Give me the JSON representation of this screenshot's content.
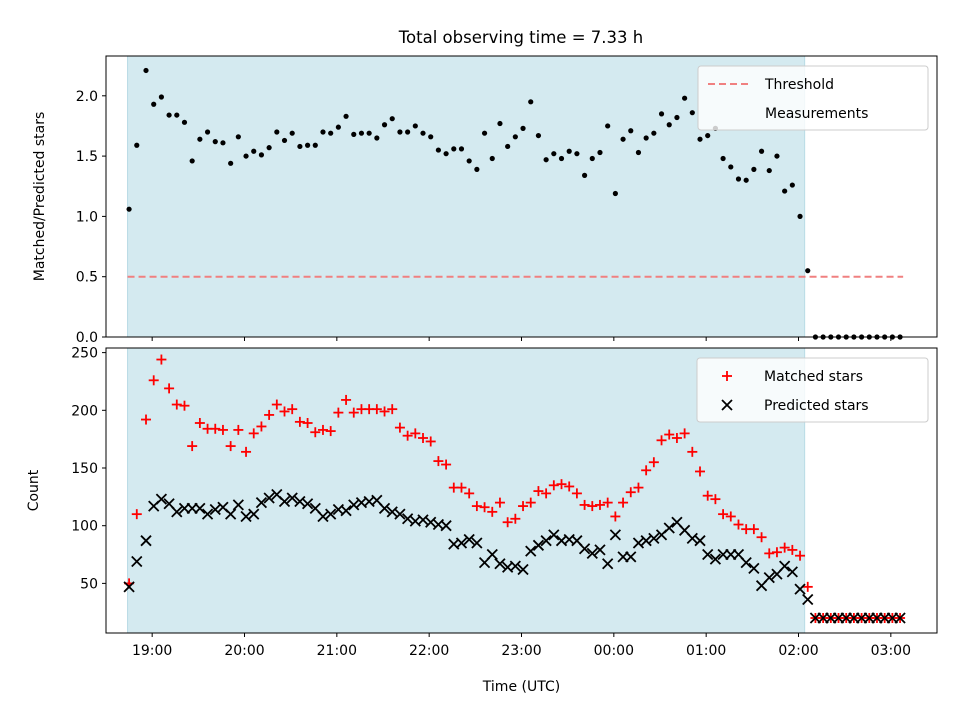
{
  "title": "Total observing time = 7.33 h",
  "colors": {
    "shade": "#d4eaf0",
    "threshold": "#f08080",
    "measurement": "#000000",
    "matched": "#ff0000",
    "predicted": "#000000"
  },
  "chart_data": [
    {
      "type": "scatter",
      "panel": "top",
      "xlabel": "",
      "ylabel": "Matched/Predicted stars",
      "xlim": [
        18.5,
        3.5
      ],
      "ylim": [
        0.0,
        2.33
      ],
      "yticks": [
        "0.0",
        "0.5",
        "1.0",
        "1.5",
        "2.0"
      ],
      "grid": false,
      "legend_position": "upper-right",
      "shaded_interval": [
        "18:44",
        "02:04"
      ],
      "threshold": {
        "name": "Threshold",
        "value": 0.5,
        "x_range": [
          "18:44",
          "03:08"
        ],
        "style": "dashed"
      },
      "series": [
        {
          "name": "Measurements",
          "marker": "dot",
          "x": [
            "18:45",
            "18:50",
            "18:56",
            "19:01",
            "19:06",
            "19:11",
            "19:16",
            "19:21",
            "19:26",
            "19:31",
            "19:36",
            "19:41",
            "19:46",
            "19:51",
            "19:56",
            "20:01",
            "20:06",
            "20:11",
            "20:16",
            "20:21",
            "20:26",
            "20:31",
            "20:36",
            "20:41",
            "20:46",
            "20:51",
            "20:56",
            "21:01",
            "21:06",
            "21:11",
            "21:16",
            "21:21",
            "21:26",
            "21:31",
            "21:36",
            "21:41",
            "21:46",
            "21:51",
            "21:56",
            "22:01",
            "22:06",
            "22:11",
            "22:16",
            "22:21",
            "22:26",
            "22:31",
            "22:36",
            "22:41",
            "22:46",
            "22:51",
            "22:56",
            "23:01",
            "23:06",
            "23:11",
            "23:16",
            "23:21",
            "23:26",
            "23:31",
            "23:36",
            "23:41",
            "23:46",
            "23:51",
            "23:56",
            "00:01",
            "00:06",
            "00:11",
            "00:16",
            "00:21",
            "00:26",
            "00:31",
            "00:36",
            "00:41",
            "00:46",
            "00:51",
            "00:56",
            "01:01",
            "01:06",
            "01:11",
            "01:16",
            "01:21",
            "01:26",
            "01:31",
            "01:36",
            "01:41",
            "01:46",
            "01:51",
            "01:56",
            "02:01",
            "02:06",
            "02:11",
            "02:16",
            "02:21",
            "02:26",
            "02:31",
            "02:36",
            "02:41",
            "02:46",
            "02:51",
            "02:56",
            "03:01",
            "03:06"
          ],
          "y": [
            1.06,
            1.59,
            2.21,
            1.93,
            1.99,
            1.84,
            1.84,
            1.78,
            1.46,
            1.64,
            1.7,
            1.62,
            1.61,
            1.44,
            1.66,
            1.5,
            1.54,
            1.51,
            1.57,
            1.7,
            1.63,
            1.69,
            1.58,
            1.59,
            1.59,
            1.7,
            1.69,
            1.74,
            1.83,
            1.68,
            1.69,
            1.69,
            1.65,
            1.76,
            1.81,
            1.7,
            1.7,
            1.75,
            1.69,
            1.66,
            1.55,
            1.52,
            1.56,
            1.56,
            1.46,
            1.39,
            1.69,
            1.48,
            1.77,
            1.58,
            1.66,
            1.73,
            1.95,
            1.67,
            1.47,
            1.52,
            1.48,
            1.54,
            1.52,
            1.34,
            1.48,
            1.53,
            1.75,
            1.19,
            1.64,
            1.71,
            1.53,
            1.65,
            1.69,
            1.85,
            1.76,
            1.82,
            1.98,
            1.86,
            1.64,
            1.67,
            1.73,
            1.48,
            1.41,
            1.31,
            1.3,
            1.39,
            1.54,
            1.38,
            1.5,
            1.21,
            1.26,
            1.0,
            0.55,
            0.0,
            0.0,
            0.0,
            0.0,
            0.0,
            0.0,
            0.0,
            0.0,
            0.0,
            0.0,
            0.0,
            0.0
          ]
        }
      ]
    },
    {
      "type": "scatter",
      "panel": "bottom",
      "xlabel": "Time (UTC)",
      "ylabel": "Count",
      "xlim": [
        18.5,
        3.5
      ],
      "ylim": [
        7,
        254
      ],
      "yticks": [
        "50",
        "100",
        "150",
        "200",
        "250"
      ],
      "xticks": [
        "19:00",
        "20:00",
        "21:00",
        "22:00",
        "23:00",
        "00:00",
        "01:00",
        "02:00",
        "03:00"
      ],
      "grid": false,
      "legend_position": "upper-right",
      "shaded_interval": [
        "18:44",
        "02:04"
      ],
      "x": [
        "18:45",
        "18:50",
        "18:56",
        "19:01",
        "19:06",
        "19:11",
        "19:16",
        "19:21",
        "19:26",
        "19:31",
        "19:36",
        "19:41",
        "19:46",
        "19:51",
        "19:56",
        "20:01",
        "20:06",
        "20:11",
        "20:16",
        "20:21",
        "20:26",
        "20:31",
        "20:36",
        "20:41",
        "20:46",
        "20:51",
        "20:56",
        "21:01",
        "21:06",
        "21:11",
        "21:16",
        "21:21",
        "21:26",
        "21:31",
        "21:36",
        "21:41",
        "21:46",
        "21:51",
        "21:56",
        "22:01",
        "22:06",
        "22:11",
        "22:16",
        "22:21",
        "22:26",
        "22:31",
        "22:36",
        "22:41",
        "22:46",
        "22:51",
        "22:56",
        "23:01",
        "23:06",
        "23:11",
        "23:16",
        "23:21",
        "23:26",
        "23:31",
        "23:36",
        "23:41",
        "23:46",
        "23:51",
        "23:56",
        "00:01",
        "00:06",
        "00:11",
        "00:16",
        "00:21",
        "00:26",
        "00:31",
        "00:36",
        "00:41",
        "00:46",
        "00:51",
        "00:56",
        "01:01",
        "01:06",
        "01:11",
        "01:16",
        "01:21",
        "01:26",
        "01:31",
        "01:36",
        "01:41",
        "01:46",
        "01:51",
        "01:56",
        "02:01",
        "02:06",
        "02:11",
        "02:16",
        "02:21",
        "02:26",
        "02:31",
        "02:36",
        "02:41",
        "02:46",
        "02:51",
        "02:56",
        "03:01",
        "03:06"
      ],
      "series": [
        {
          "name": "Matched stars",
          "marker": "plus",
          "y": [
            50,
            110,
            192,
            226,
            244,
            219,
            205,
            204,
            169,
            189,
            184,
            184,
            183,
            169,
            183,
            164,
            180,
            186,
            196,
            205,
            199,
            201,
            190,
            189,
            181,
            183,
            182,
            198,
            209,
            198,
            201,
            201,
            201,
            199,
            201,
            185,
            178,
            180,
            176,
            173,
            156,
            153,
            133,
            133,
            128,
            117,
            116,
            112,
            120,
            103,
            106,
            117,
            120,
            130,
            128,
            135,
            136,
            134,
            128,
            118,
            117,
            118,
            120,
            108,
            120,
            129,
            133,
            148,
            155,
            174,
            179,
            176,
            180,
            164,
            147,
            126,
            123,
            110,
            108,
            101,
            97,
            97,
            90,
            76,
            77,
            81,
            79,
            74,
            47,
            20,
            20,
            20,
            20,
            20,
            20,
            20,
            20,
            20,
            20,
            20,
            20
          ]
        },
        {
          "name": "Predicted stars",
          "marker": "x",
          "y": [
            47,
            69,
            87,
            117,
            123,
            119,
            112,
            115,
            115,
            115,
            110,
            114,
            116,
            110,
            118,
            108,
            110,
            120,
            124,
            127,
            121,
            124,
            121,
            119,
            115,
            108,
            110,
            114,
            113,
            118,
            120,
            121,
            122,
            115,
            112,
            110,
            106,
            104,
            105,
            103,
            101,
            100,
            84,
            85,
            88,
            85,
            68,
            75,
            67,
            64,
            65,
            62,
            78,
            83,
            87,
            92,
            87,
            88,
            87,
            80,
            76,
            79,
            67,
            92,
            73,
            73,
            85,
            87,
            89,
            92,
            98,
            103,
            96,
            89,
            87,
            75,
            71,
            75,
            75,
            75,
            68,
            63,
            48,
            55,
            58,
            65,
            60,
            45,
            36,
            20,
            20,
            20,
            20,
            20,
            20,
            20,
            20,
            20,
            20,
            20,
            20
          ]
        }
      ]
    }
  ]
}
